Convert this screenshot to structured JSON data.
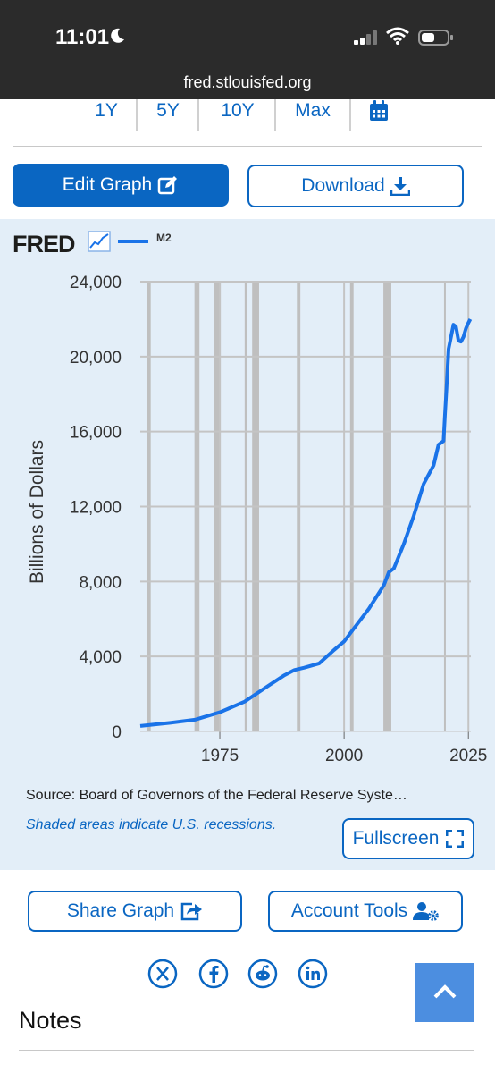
{
  "status_bar": {
    "time": "11:01",
    "url": "fred.stlouisfed.org"
  },
  "ranges": [
    "1Y",
    "5Y",
    "10Y",
    "Max"
  ],
  "buttons": {
    "edit_graph": "Edit Graph",
    "download": "Download",
    "fullscreen": "Fullscreen",
    "share_graph": "Share Graph",
    "account_tools": "Account Tools"
  },
  "graph": {
    "logo": "FRED",
    "source": "Source: Board of Governors of the Federal Reserve Syste…",
    "shaded_note": "Shaded areas indicate U.S. recessions."
  },
  "notes_heading": "Notes",
  "colors": {
    "accent": "#0a66c2",
    "series": "#1a73e8",
    "panel_bg": "#e3eef8",
    "status_bar": "#2b2b2b"
  },
  "icons": [
    "moon-icon",
    "signal-icon",
    "wifi-icon",
    "battery-icon",
    "calendar-icon",
    "edit-icon",
    "download-icon",
    "chart-icon",
    "fullscreen-icon",
    "share-icon",
    "account-icon",
    "x-icon",
    "facebook-icon",
    "reddit-icon",
    "linkedin-icon",
    "chevron-up-icon"
  ],
  "chart_data": {
    "type": "line",
    "series": [
      {
        "name": "M2",
        "x": [
          1959,
          1965,
          1970,
          1975,
          1980,
          1985,
          1988,
          1990,
          1992,
          1995,
          1998,
          2000,
          2002,
          2005,
          2008,
          2009,
          2010,
          2012,
          2014,
          2016,
          2018,
          2019,
          2020.0,
          2020.3,
          2020.6,
          2021,
          2022,
          2022.5,
          2023,
          2023.5,
          2024,
          2024.5,
          2025,
          2025.4
        ],
        "y": [
          290,
          460,
          625,
          1020,
          1590,
          2480,
          3000,
          3280,
          3400,
          3630,
          4350,
          4800,
          5500,
          6550,
          7800,
          8500,
          8700,
          10000,
          11500,
          13200,
          14200,
          15300,
          15500,
          17000,
          18300,
          20400,
          21700,
          21600,
          20850,
          20800,
          21050,
          21500,
          21800,
          22000
        ]
      }
    ],
    "ylabel": "Billions of Dollars",
    "xlabel": "",
    "y_ticks": [
      0,
      4000,
      8000,
      12000,
      16000,
      20000,
      24000
    ],
    "y_tick_labels": [
      "0",
      "4,000",
      "8,000",
      "12,000",
      "16,000",
      "20,000",
      "24,000"
    ],
    "x_ticks": [
      1975,
      2000,
      2025
    ],
    "xlim": [
      1959,
      2025.5
    ],
    "ylim": [
      0,
      24000
    ],
    "recessions": [
      [
        1960.3,
        1961.1
      ],
      [
        1969.9,
        1970.9
      ],
      [
        1973.9,
        1975.2
      ],
      [
        1980.0,
        1980.5
      ],
      [
        1981.5,
        1982.9
      ],
      [
        1990.5,
        1991.2
      ],
      [
        2001.2,
        2001.9
      ],
      [
        2007.9,
        2009.5
      ],
      [
        2020.1,
        2020.4
      ]
    ],
    "grid": true
  }
}
